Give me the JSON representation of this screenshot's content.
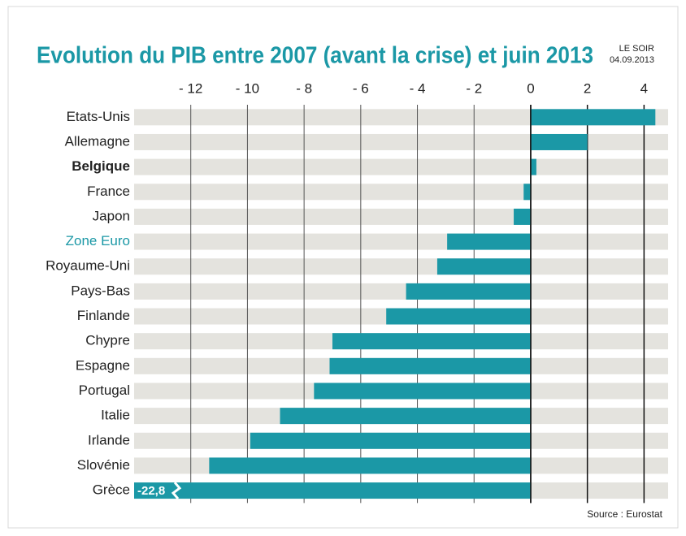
{
  "chart_data": {
    "type": "barh",
    "title": "Evolution du PIB entre 2007 (avant la crise) et juin 2013",
    "source": "Le Soir",
    "publisher": "LE SOIR",
    "date": "04.09.2013",
    "note": "Source : Eurostat",
    "categories": [
      "Etats-Unis",
      "Allemagne",
      "Belgique",
      "France",
      "Japon",
      "Zone Euro",
      "Royaume-Uni",
      "Pays-Bas",
      "Finlande",
      "Chypre",
      "Espagne",
      "Portugal",
      "Italie",
      "Irlande",
      "Slovénie",
      "Grèce"
    ],
    "values": [
      4.4,
      2.0,
      0.2,
      -0.25,
      -0.6,
      -2.95,
      -3.3,
      -4.4,
      -5.1,
      -7.0,
      -7.1,
      -7.65,
      -8.85,
      -9.9,
      -11.35,
      -22.8
    ],
    "value_labels": [
      null,
      null,
      null,
      null,
      null,
      null,
      null,
      null,
      null,
      null,
      null,
      null,
      null,
      null,
      null,
      "-22,8"
    ],
    "color": "#1b98a6",
    "xlim": [
      -14,
      4.85
    ],
    "xticks": [
      {
        "value": -12,
        "label": "- 12"
      },
      {
        "value": -10,
        "label": "- 10"
      },
      {
        "value": -8,
        "label": "- 8"
      },
      {
        "value": -6,
        "label": "- 6"
      },
      {
        "value": -4,
        "label": "- 4"
      },
      {
        "value": -2,
        "label": "- 2"
      },
      0,
      2,
      4
    ],
    "grid": true
  }
}
